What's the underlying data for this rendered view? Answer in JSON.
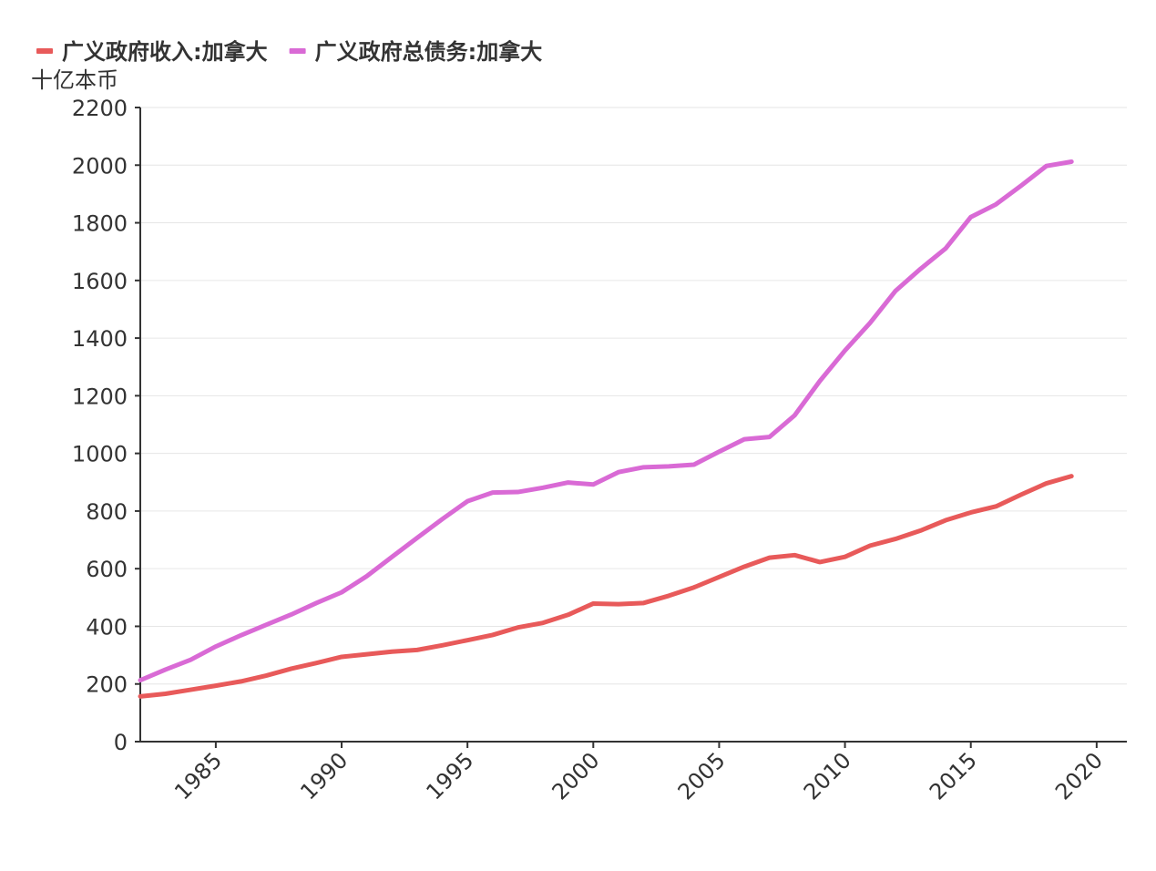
{
  "chart_data": {
    "type": "line",
    "title": "",
    "ylabel": "十亿本币",
    "xlabel": "",
    "xlim": [
      1982,
      2021.2
    ],
    "ylim": [
      0,
      2200
    ],
    "xticks": [
      1985,
      1990,
      1995,
      2000,
      2005,
      2010,
      2015,
      2020
    ],
    "yticks": [
      0,
      200,
      400,
      600,
      800,
      1000,
      1200,
      1400,
      1600,
      1800,
      2000,
      2200
    ],
    "grid": "horizontal",
    "legend_position": "top-left",
    "x": [
      1982,
      1983,
      1984,
      1985,
      1986,
      1987,
      1988,
      1989,
      1990,
      1991,
      1992,
      1993,
      1994,
      1995,
      1996,
      1997,
      1998,
      1999,
      2000,
      2001,
      2002,
      2003,
      2004,
      2005,
      2006,
      2007,
      2008,
      2009,
      2010,
      2011,
      2012,
      2013,
      2014,
      2015,
      2016,
      2017,
      2018,
      2019
    ],
    "series": [
      {
        "name": "广义政府收入:加拿大",
        "color": "#e85a5a",
        "values": [
          157,
          166,
          180,
          194,
          209,
          229,
          253,
          273,
          294,
          303,
          312,
          318,
          334,
          352,
          370,
          396,
          412,
          440,
          479,
          477,
          481,
          506,
          535,
          571,
          607,
          638,
          647,
          623,
          641,
          680,
          703,
          732,
          768,
          795,
          816,
          857,
          896,
          921
        ]
      },
      {
        "name": "广义政府总债务:加拿大",
        "color": "#d96ad5",
        "values": [
          213,
          250,
          284,
          330,
          369,
          405,
          441,
          481,
          518,
          574,
          641,
          707,
          772,
          834,
          864,
          866,
          881,
          899,
          892,
          935,
          952,
          955,
          961,
          1006,
          1049,
          1057,
          1132,
          1251,
          1357,
          1453,
          1563,
          1640,
          1711,
          1820,
          1864,
          1929,
          1997,
          2012
        ]
      }
    ]
  }
}
